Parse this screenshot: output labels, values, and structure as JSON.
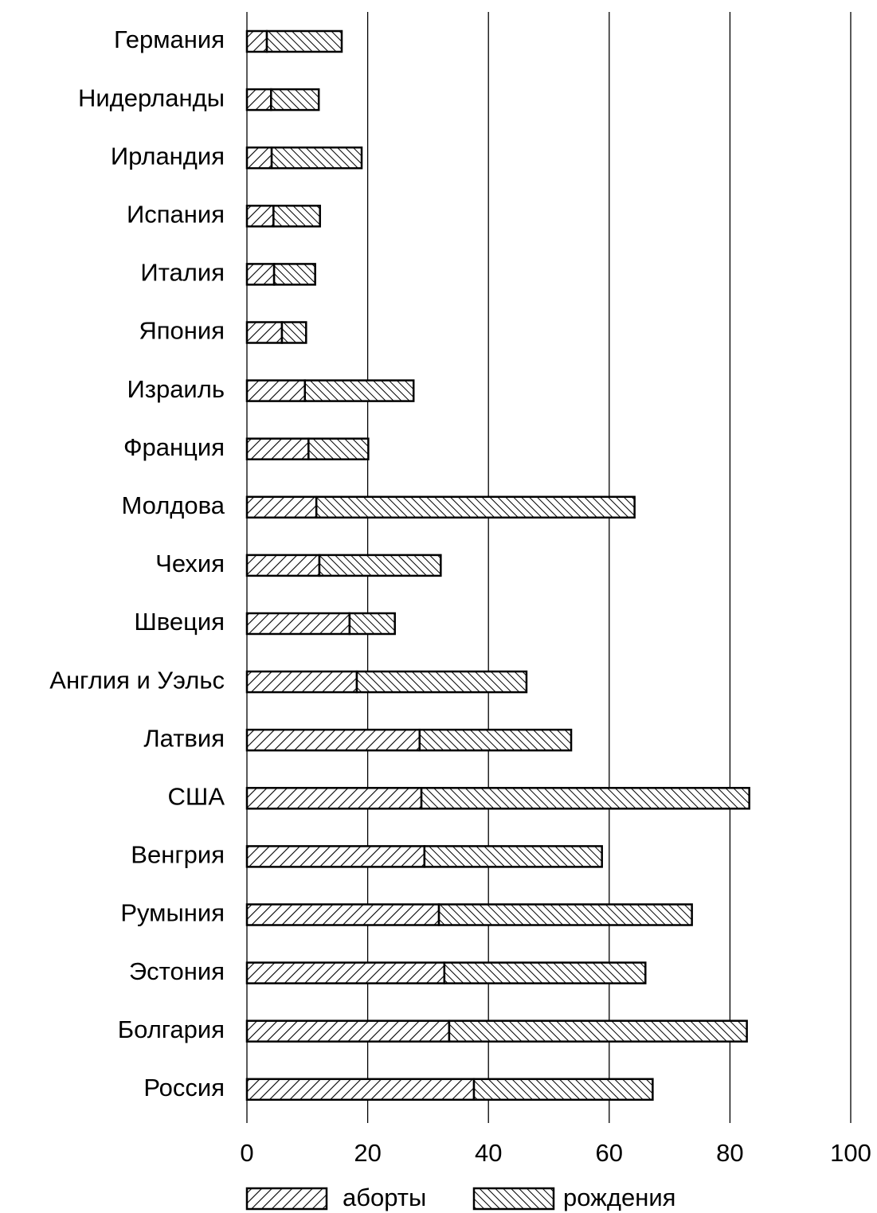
{
  "chart_data": {
    "type": "stacked_barh",
    "categories": [
      "Германия",
      "Нидерланды",
      "Ирландия",
      "Испания",
      "Италия",
      "Япония",
      "Израиль",
      "Франция",
      "Молдова",
      "Чехия",
      "Швеция",
      "Англия и Уэльс",
      "Латвия",
      "США",
      "Венгрия",
      "Румыния",
      "Эстония",
      "Болгария",
      "Россия"
    ],
    "series": [
      {
        "name": "аборты",
        "color": "#000000",
        "values": [
          3.3,
          4.0,
          4.1,
          4.4,
          4.5,
          5.8,
          9.6,
          10.2,
          11.5,
          12.0,
          17.0,
          18.2,
          28.6,
          28.9,
          29.4,
          31.8,
          32.7,
          33.5,
          37.6
        ]
      },
      {
        "name": "рождения",
        "color": "#000000",
        "values": [
          12.4,
          7.9,
          14.9,
          7.7,
          6.8,
          4.0,
          18.0,
          9.9,
          52.7,
          20.1,
          7.5,
          28.1,
          25.1,
          54.3,
          29.4,
          41.9,
          33.3,
          49.3,
          29.6
        ]
      }
    ],
    "xlim": [
      0,
      100
    ],
    "xticks": [
      0,
      20,
      40,
      60,
      80,
      100
    ],
    "grid": true
  }
}
